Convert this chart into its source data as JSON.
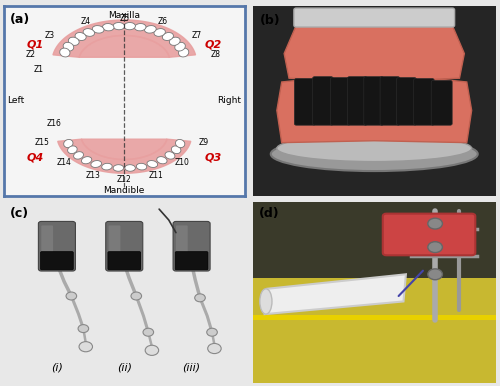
{
  "figure_bg": "#e8e8e8",
  "outer_border_color": "#5577aa",
  "panel_labels": [
    "(a)",
    "(b)",
    "(c)",
    "(d)"
  ],
  "panel_a": {
    "bg": "#f5f5f5",
    "border_color": "#5577aa",
    "palate_color": "#e8a0a0",
    "gum_color": "#e8a0a0",
    "tooth_fill": "#ffffff",
    "tooth_edge": "#888888",
    "quadrant_color": "#cc0000",
    "label_color": "#000000",
    "dashed_color": "#333333"
  },
  "panel_b": {
    "bg": "#1a1a1a",
    "gum_upper_color": "#d96050",
    "gum_lower_color": "#d96050",
    "teeth_color": "#1c1c1c",
    "base_color": "#888888",
    "rim_color": "#aaaaaa"
  },
  "panel_c": {
    "bg": "#e8e8e8",
    "brush_dark": "#666666",
    "brush_mid": "#888888",
    "arm_color": "#aaaaaa",
    "bristle_color": "#111111",
    "sub_label_color": "#000000"
  },
  "panel_d": {
    "bg_upper": "#4a4a3a",
    "bg_lower": "#c8b830",
    "cylinder_color": "#eeeeee",
    "jaw_color": "#cc4444",
    "metal_color": "#888888"
  }
}
